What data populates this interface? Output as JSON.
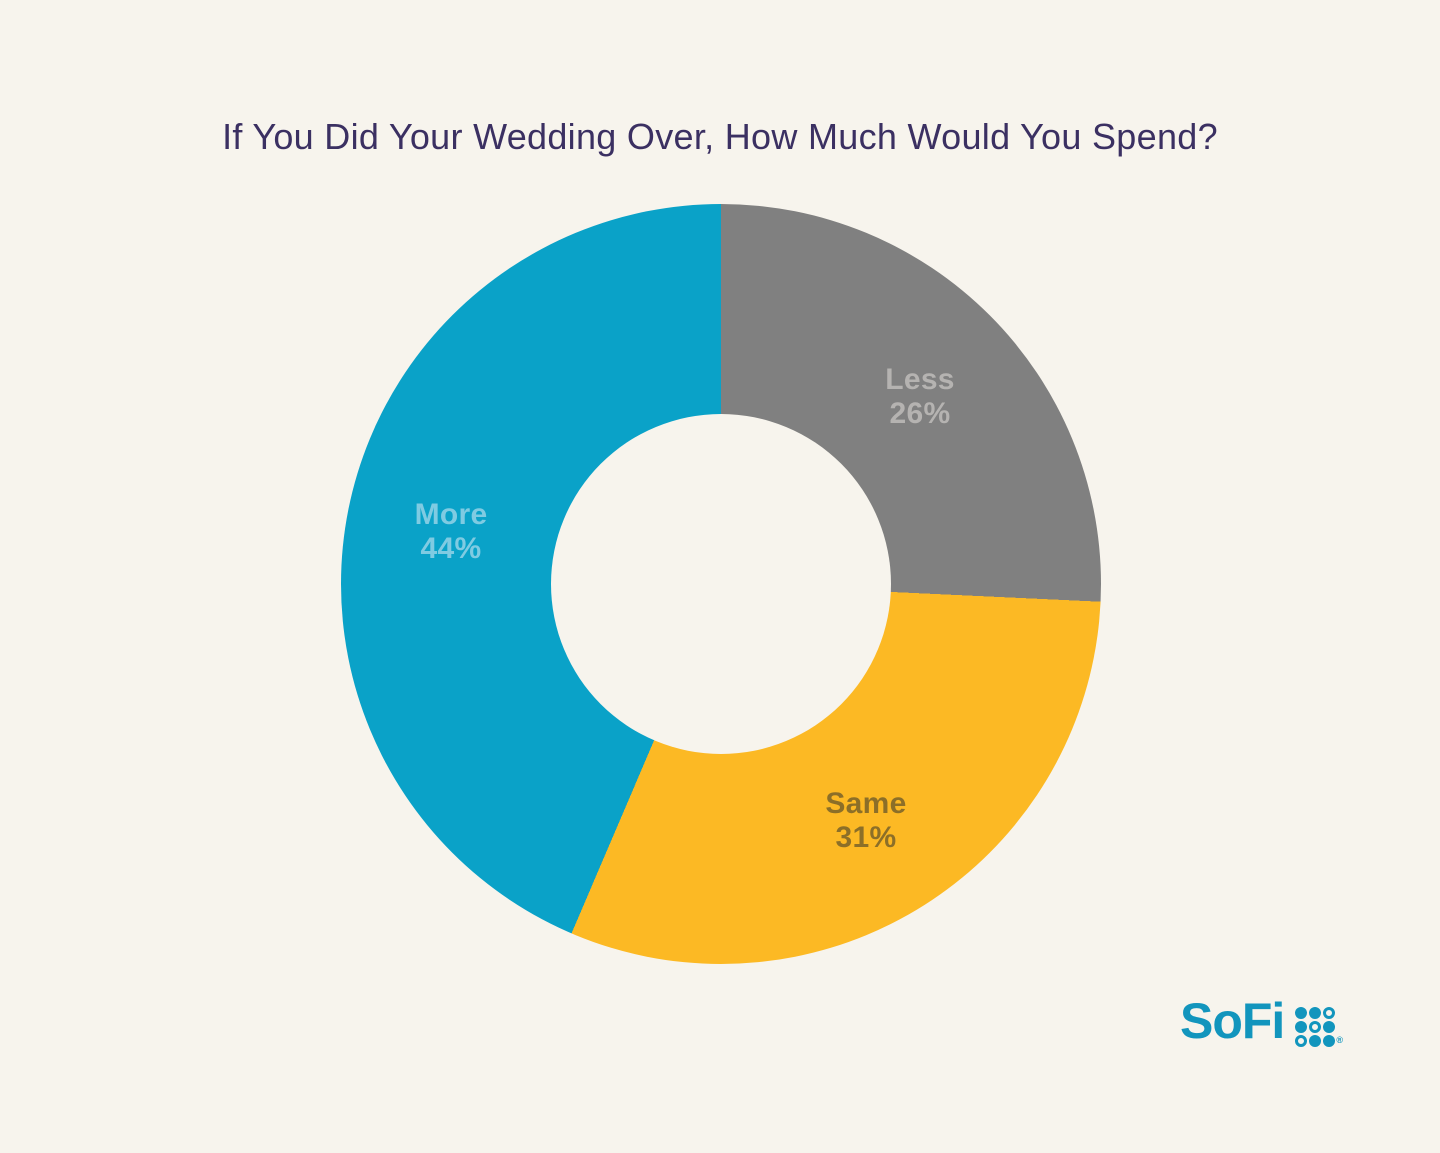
{
  "page": {
    "background_color": "#F7F4ED"
  },
  "chart_data": {
    "type": "pie",
    "subtype": "donut",
    "title": "If You Did Your Wedding Over, How Much Would You Spend?",
    "title_color": "#3B3062",
    "start_angle_deg": 0,
    "rotation": "clockwise",
    "inner_radius_ratio": 0.45,
    "legend": "none",
    "labels_position": "inside-slices",
    "slices": [
      {
        "label": "Less",
        "value": 26,
        "pct_text": "26%",
        "color": "#808080",
        "label_color": "#B5B3B1"
      },
      {
        "label": "Same",
        "value": 31,
        "pct_text": "31%",
        "color": "#FCB924",
        "label_color": "#8C6F28"
      },
      {
        "label": "More",
        "value": 44,
        "pct_text": "44%",
        "color": "#0AA2C8",
        "label_color": "#7FCBE2"
      }
    ]
  },
  "branding": {
    "logo_text": "SoFi",
    "logo_color": "#1295BD",
    "trademark": "®",
    "dot_grid": [
      [
        1,
        1,
        0
      ],
      [
        1,
        0,
        1
      ],
      [
        0,
        1,
        1
      ]
    ]
  }
}
